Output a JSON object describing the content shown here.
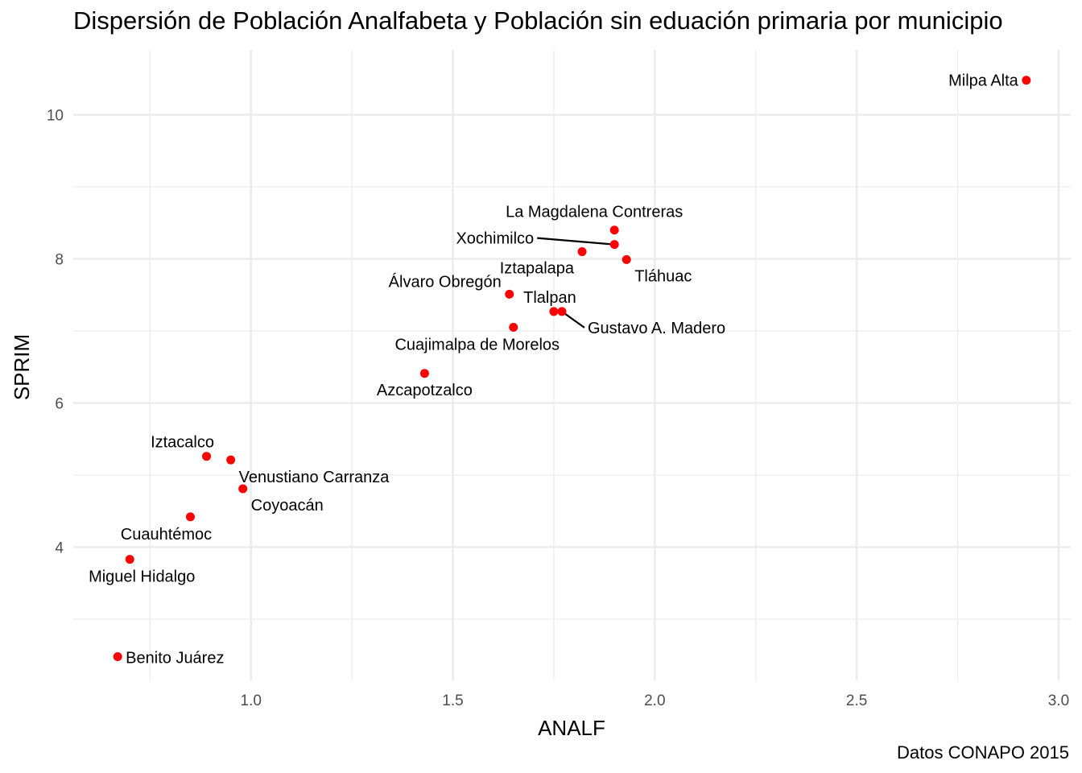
{
  "title": "Dispersión de Población Analfabeta y Población sin eduación primaria por municipio",
  "caption": "Datos CONAPO 2015",
  "chart_data": {
    "type": "scatter",
    "title": "Dispersión de Población Analfabeta y Población sin eduación primaria por municipio",
    "xlabel": "ANALF",
    "ylabel": "SPRIM",
    "xlim": [
      0.56,
      3.03
    ],
    "ylim": [
      2.15,
      10.9
    ],
    "x_ticks": [
      1.0,
      1.5,
      2.0,
      2.5,
      3.0
    ],
    "x_tick_labels": [
      "1.0",
      "1.5",
      "2.0",
      "2.5",
      "3.0"
    ],
    "y_ticks": [
      4,
      6,
      8,
      10
    ],
    "y_tick_labels": [
      "4",
      "6",
      "8",
      "10"
    ],
    "grid": true,
    "point_color": "#ff0000",
    "points": [
      {
        "label": "Milpa Alta",
        "x": 2.92,
        "y": 10.48
      },
      {
        "label": "La Magdalena Contreras",
        "x": 1.9,
        "y": 8.4
      },
      {
        "label": "Xochimilco",
        "x": 1.9,
        "y": 8.2
      },
      {
        "label": "Iztapalapa",
        "x": 1.82,
        "y": 8.1
      },
      {
        "label": "Tláhuac",
        "x": 1.93,
        "y": 7.99
      },
      {
        "label": "Álvaro Obregón",
        "x": 1.64,
        "y": 7.51
      },
      {
        "label": "Tlalpan",
        "x": 1.75,
        "y": 7.27
      },
      {
        "label": "Gustavo A. Madero",
        "x": 1.77,
        "y": 7.27
      },
      {
        "label": "Cuajimalpa de Morelos",
        "x": 1.65,
        "y": 7.05
      },
      {
        "label": "Azcapotzalco",
        "x": 1.43,
        "y": 6.41
      },
      {
        "label": "Iztacalco",
        "x": 0.89,
        "y": 5.26
      },
      {
        "label": "Venustiano Carranza",
        "x": 0.95,
        "y": 5.21
      },
      {
        "label": "Coyoacán",
        "x": 0.98,
        "y": 4.81
      },
      {
        "label": "Cuauhtémoc",
        "x": 0.85,
        "y": 4.42
      },
      {
        "label": "Miguel Hidalgo",
        "x": 0.7,
        "y": 3.83
      },
      {
        "label": "Benito Juárez",
        "x": 0.67,
        "y": 2.48
      }
    ]
  }
}
